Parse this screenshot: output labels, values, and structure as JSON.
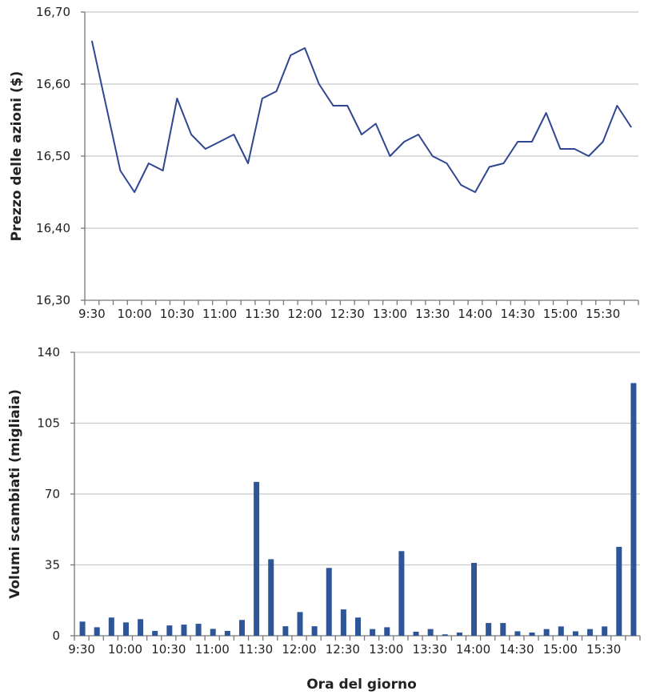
{
  "chart_data": [
    {
      "type": "line",
      "ylabel": "Prezzo delle azioni ($)",
      "xlabel": "",
      "ylim": [
        16.3,
        16.7
      ],
      "yticks": [
        "16,30",
        "16,40",
        "16,50",
        "16,60",
        "16,70"
      ],
      "xtick_labels": [
        "9:30",
        "10:00",
        "10:30",
        "11:00",
        "11:30",
        "12:00",
        "12:30",
        "13:00",
        "13:30",
        "14:00",
        "14:30",
        "15:00",
        "15:30"
      ],
      "grid": true,
      "color": "#2f4690",
      "x": [
        "9:35",
        "9:45",
        "9:55",
        "10:05",
        "10:15",
        "10:25",
        "10:35",
        "10:45",
        "10:55",
        "11:05",
        "11:15",
        "11:25",
        "11:35",
        "11:45",
        "11:55",
        "12:05",
        "12:15",
        "12:25",
        "12:35",
        "12:45",
        "12:55",
        "13:05",
        "13:15",
        "13:25",
        "13:35",
        "13:45",
        "13:55",
        "14:05",
        "14:15",
        "14:25",
        "14:35",
        "14:45",
        "14:55",
        "15:05",
        "15:15",
        "15:25",
        "15:35",
        "15:45",
        "15:55"
      ],
      "values": [
        16.66,
        16.57,
        16.48,
        16.45,
        16.49,
        16.48,
        16.58,
        16.53,
        16.51,
        16.52,
        16.53,
        16.49,
        16.58,
        16.59,
        16.64,
        16.65,
        16.6,
        16.57,
        16.57,
        16.53,
        16.545,
        16.5,
        16.52,
        16.53,
        16.5,
        16.49,
        16.46,
        16.45,
        16.485,
        16.49,
        16.52,
        16.52,
        16.56,
        16.51,
        16.51,
        16.5,
        16.52,
        16.57,
        16.54
      ]
    },
    {
      "type": "bar",
      "ylabel": "Volumi scambiati (migliaia)",
      "xlabel": "Ora del giorno",
      "ylim": [
        0,
        140
      ],
      "yticks": [
        "0",
        "35",
        "70",
        "105",
        "140"
      ],
      "xtick_labels": [
        "9:30",
        "10:00",
        "10:30",
        "11:00",
        "11:30",
        "12:00",
        "12:30",
        "13:00",
        "13:30",
        "14:00",
        "14:30",
        "15:00",
        "15:30"
      ],
      "grid": true,
      "color": "#2e5597",
      "values": [
        7,
        4.2,
        9,
        6.6,
        8.2,
        2.4,
        5.1,
        5.5,
        5.9,
        3.4,
        2.4,
        7.8,
        76,
        37.8,
        4.7,
        11.7,
        4.7,
        33.5,
        13,
        9,
        3.3,
        4.2,
        41.8,
        2,
        3.3,
        0.7,
        1.6,
        36,
        6.3,
        6.3,
        2.2,
        1.6,
        3.3,
        4.6,
        2.2,
        3.3,
        4.6,
        43.9,
        124.8
      ]
    }
  ]
}
